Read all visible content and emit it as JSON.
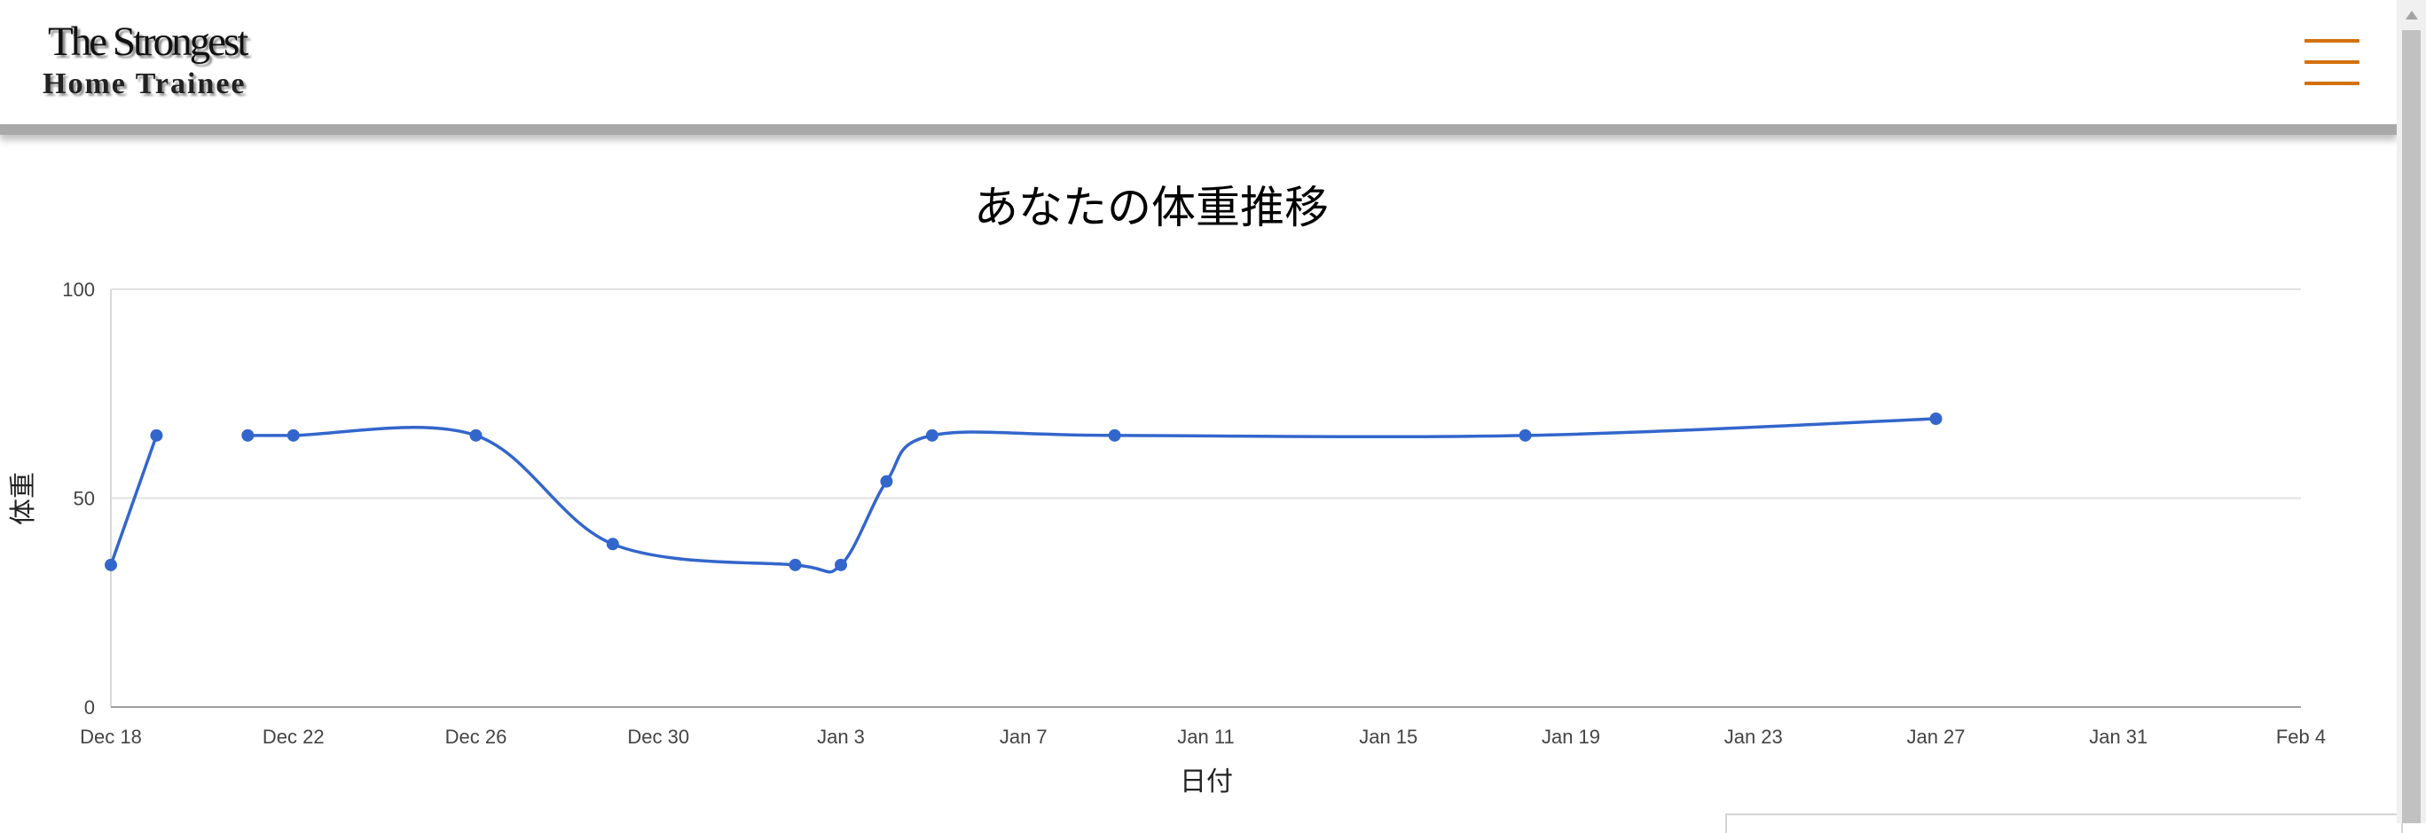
{
  "header": {
    "logo_line1": "The Strongest",
    "logo_line2": "Home Trainee",
    "menu_icon": "hamburger-menu-icon",
    "accent_color": "#d4700e"
  },
  "chart_data": {
    "type": "line",
    "title": "あなたの体重推移",
    "xlabel": "日付",
    "ylabel": "体重",
    "ylim": [
      0,
      100
    ],
    "yticks": [
      0,
      50,
      100
    ],
    "xlim": [
      "Dec 18",
      "Feb 4"
    ],
    "xticks": [
      "Dec 18",
      "Dec 22",
      "Dec 26",
      "Dec 30",
      "Jan 3",
      "Jan 7",
      "Jan 11",
      "Jan 15",
      "Jan 19",
      "Jan 23",
      "Jan 27",
      "Jan 31",
      "Feb 4"
    ],
    "grid": true,
    "line_color": "#3366cc",
    "curve": "smooth",
    "series": [
      {
        "segments": [
          [
            {
              "x": "Dec 18",
              "y": 34
            },
            {
              "x": "Dec 19",
              "y": 65
            }
          ],
          [
            {
              "x": "Dec 21",
              "y": 65
            },
            {
              "x": "Dec 22",
              "y": 65
            },
            {
              "x": "Dec 26",
              "y": 65
            },
            {
              "x": "Dec 29",
              "y": 39
            },
            {
              "x": "Jan 2",
              "y": 34
            },
            {
              "x": "Jan 3",
              "y": 34
            },
            {
              "x": "Jan 4",
              "y": 54
            },
            {
              "x": "Jan 5",
              "y": 65
            },
            {
              "x": "Jan 9",
              "y": 65
            },
            {
              "x": "Jan 18",
              "y": 65
            },
            {
              "x": "Jan 27",
              "y": 69
            }
          ]
        ]
      }
    ]
  }
}
